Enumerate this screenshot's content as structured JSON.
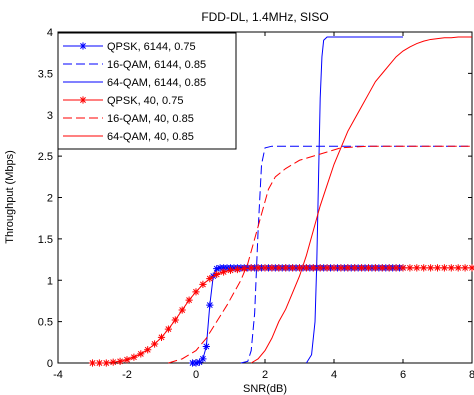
{
  "chart_data": {
    "type": "line",
    "title": "FDD-DL, 1.4MHz, SISO",
    "xlabel": "SNR(dB)",
    "ylabel": "Throughput (Mbps)",
    "xlim": [
      -4,
      8
    ],
    "ylim": [
      0,
      4
    ],
    "xticks": [
      -4,
      -2,
      0,
      2,
      4,
      6,
      8
    ],
    "yticks": [
      0,
      0.5,
      1,
      1.5,
      2,
      2.5,
      3,
      3.5,
      4
    ],
    "xtick_labels": [
      "-4",
      "-2",
      "0",
      "2",
      "4",
      "6",
      "8"
    ],
    "ytick_labels": [
      "0",
      "0.5",
      "1",
      "1.5",
      "2",
      "2.5",
      "3",
      "3.5",
      "4"
    ],
    "grid": false,
    "legend_position": "top-left",
    "series": [
      {
        "name": "QPSK, 6144, 0.75",
        "color": "#0000ff",
        "line_style": "solid",
        "marker": "star",
        "x": [
          -0.1,
          0.0,
          0.1,
          0.2,
          0.3,
          0.4,
          0.5,
          0.6,
          0.7,
          0.8,
          0.9,
          1.0,
          1.1,
          1.2,
          1.3,
          1.4,
          1.5,
          1.6,
          1.7,
          1.8,
          1.9,
          2.0,
          2.1,
          2.2,
          2.3,
          2.4,
          2.5,
          2.6,
          2.7,
          2.8,
          2.9,
          3.0,
          3.1,
          3.2,
          3.3,
          3.4,
          3.5,
          3.6,
          3.7,
          3.8,
          3.9,
          4.0,
          4.1,
          4.2,
          4.3,
          4.4,
          4.5,
          4.6,
          4.7,
          4.8,
          4.9,
          5.0,
          5.1,
          5.2,
          5.3,
          5.4,
          5.5,
          5.6,
          5.7,
          5.8,
          5.9,
          6.0
        ],
        "y": [
          0,
          0,
          0.01,
          0.05,
          0.2,
          0.7,
          1.05,
          1.14,
          1.15,
          1.15,
          1.15,
          1.15,
          1.15,
          1.15,
          1.15,
          1.15,
          1.15,
          1.15,
          1.15,
          1.15,
          1.15,
          1.15,
          1.15,
          1.15,
          1.15,
          1.15,
          1.15,
          1.15,
          1.15,
          1.15,
          1.15,
          1.15,
          1.15,
          1.15,
          1.15,
          1.15,
          1.15,
          1.15,
          1.15,
          1.15,
          1.15,
          1.15,
          1.15,
          1.15,
          1.15,
          1.15,
          1.15,
          1.15,
          1.15,
          1.15,
          1.15,
          1.15,
          1.15,
          1.15,
          1.15,
          1.15,
          1.15,
          1.15,
          1.15,
          1.15,
          1.15,
          1.15
        ]
      },
      {
        "name": "16-QAM, 6144, 0.85",
        "color": "#0000ff",
        "line_style": "dashed",
        "marker": "none",
        "x": [
          1.3,
          1.5,
          1.6,
          1.7,
          1.8,
          1.9,
          2.0,
          2.2,
          2.6,
          3.0,
          4.0,
          5.0,
          6.0,
          7.0,
          8.0
        ],
        "y": [
          0,
          0.02,
          0.15,
          0.6,
          1.6,
          2.4,
          2.6,
          2.62,
          2.62,
          2.62,
          2.62,
          2.62,
          2.62,
          2.62,
          2.62
        ]
      },
      {
        "name": "64-QAM, 6144, 0.85",
        "color": "#0000ff",
        "line_style": "solid",
        "marker": "none",
        "x": [
          3.2,
          3.35,
          3.45,
          3.5,
          3.55,
          3.6,
          3.65,
          3.7,
          3.8,
          3.9,
          4.2,
          5.0,
          6.0
        ],
        "y": [
          0,
          0.1,
          0.5,
          1.2,
          2.2,
          3.2,
          3.7,
          3.9,
          3.94,
          3.94,
          3.94,
          3.94,
          3.94
        ]
      },
      {
        "name": "QPSK, 40, 0.75",
        "color": "#ff0000",
        "line_style": "solid",
        "marker": "star",
        "x": [
          -3.0,
          -2.8,
          -2.6,
          -2.4,
          -2.2,
          -2.0,
          -1.8,
          -1.6,
          -1.4,
          -1.2,
          -1.0,
          -0.8,
          -0.6,
          -0.4,
          -0.2,
          0.0,
          0.2,
          0.4,
          0.6,
          0.8,
          1.0,
          1.2,
          1.4,
          1.6,
          1.8,
          2.0,
          2.2,
          2.4,
          2.6,
          2.8,
          3.0,
          3.2,
          3.4,
          3.6,
          3.8,
          4.0,
          4.2,
          4.4,
          4.6,
          4.8,
          5.0,
          5.2,
          5.4,
          5.6,
          5.8,
          6.0,
          6.2,
          6.4,
          6.6,
          6.8,
          7.0,
          7.2,
          7.4,
          7.6,
          7.8,
          8.0
        ],
        "y": [
          0,
          0,
          0,
          0.01,
          0.02,
          0.04,
          0.07,
          0.11,
          0.16,
          0.23,
          0.31,
          0.41,
          0.52,
          0.64,
          0.76,
          0.86,
          0.95,
          1.02,
          1.07,
          1.1,
          1.12,
          1.13,
          1.14,
          1.15,
          1.15,
          1.15,
          1.15,
          1.15,
          1.15,
          1.15,
          1.15,
          1.15,
          1.15,
          1.15,
          1.15,
          1.15,
          1.15,
          1.15,
          1.15,
          1.15,
          1.15,
          1.15,
          1.15,
          1.15,
          1.15,
          1.15,
          1.15,
          1.15,
          1.15,
          1.15,
          1.15,
          1.15,
          1.15,
          1.15,
          1.15,
          1.15
        ]
      },
      {
        "name": "16-QAM, 40, 0.85",
        "color": "#ff0000",
        "line_style": "dashed",
        "marker": "none",
        "x": [
          -0.8,
          -0.4,
          0.0,
          0.3,
          0.6,
          0.9,
          1.1,
          1.3,
          1.5,
          1.7,
          1.9,
          2.1,
          2.3,
          2.6,
          3.0,
          3.4,
          3.8,
          4.2,
          4.6,
          5.0,
          6.0,
          7.0,
          8.0
        ],
        "y": [
          0,
          0.05,
          0.15,
          0.3,
          0.5,
          0.7,
          0.85,
          1.0,
          1.2,
          1.5,
          1.8,
          2.1,
          2.25,
          2.35,
          2.45,
          2.5,
          2.55,
          2.6,
          2.61,
          2.62,
          2.62,
          2.62,
          2.62
        ]
      },
      {
        "name": "64-QAM, 40, 0.85",
        "color": "#ff0000",
        "line_style": "solid",
        "marker": "none",
        "x": [
          1.6,
          1.8,
          2.0,
          2.2,
          2.4,
          2.6,
          2.8,
          3.0,
          3.2,
          3.4,
          3.6,
          3.8,
          4.0,
          4.2,
          4.4,
          4.6,
          4.8,
          5.0,
          5.2,
          5.4,
          5.6,
          5.8,
          6.0,
          6.2,
          6.4,
          6.6,
          6.8,
          7.0,
          7.2,
          7.4,
          7.6,
          7.8,
          8.0
        ],
        "y": [
          0,
          0.05,
          0.15,
          0.3,
          0.5,
          0.65,
          0.85,
          1.05,
          1.3,
          1.6,
          1.9,
          2.15,
          2.4,
          2.6,
          2.8,
          2.95,
          3.1,
          3.25,
          3.4,
          3.5,
          3.6,
          3.7,
          3.77,
          3.82,
          3.86,
          3.89,
          3.91,
          3.92,
          3.93,
          3.93,
          3.94,
          3.94,
          3.94
        ]
      }
    ]
  }
}
